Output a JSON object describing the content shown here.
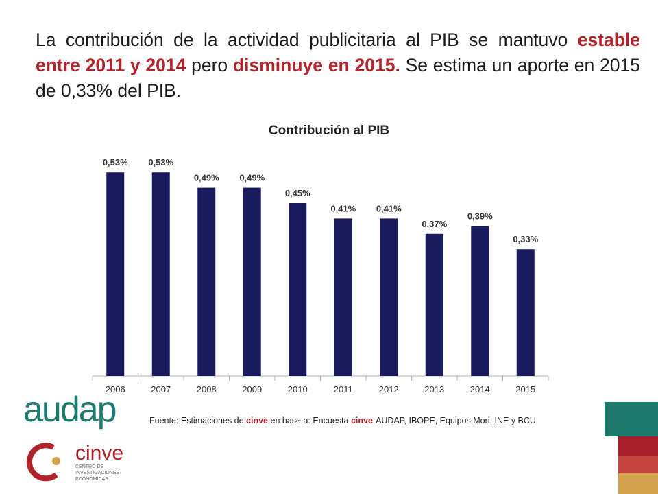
{
  "headline": {
    "part1": "La contribución de la actividad publicitaria al PIB se mantuvo ",
    "highlight1": "estable entre 2011 y 2014",
    "part2": " pero ",
    "highlight2": "disminuye en 2015.",
    "part3": " Se estima un aporte en 2015 de 0,33% del PIB."
  },
  "source": {
    "prefix": "Fuente: Estimaciones de ",
    "brand1": "cinve",
    "mid": " en base a: Encuesta ",
    "brand2": "cinve",
    "suffix": "-AUDAP,  IBOPE, Equipos Mori, INE y BCU"
  },
  "logos": {
    "audap": "audap",
    "cinve": "cinve",
    "cinve_sub": [
      "CENTRO DE",
      "INVESTIGACIONES",
      "ECONÓMICAS"
    ]
  },
  "colors": {
    "bar": "#1a1a5e",
    "highlight": "#b0232a",
    "teal": "#1e7a6c",
    "red1": "#a71f2b",
    "red2": "#c24540",
    "gold": "#d4a24c"
  },
  "chart_data": {
    "type": "bar",
    "title": "Contribución al PIB",
    "categories": [
      "2006",
      "2007",
      "2008",
      "2009",
      "2010",
      "2011",
      "2012",
      "2013",
      "2014",
      "2015"
    ],
    "values": [
      0.53,
      0.53,
      0.49,
      0.49,
      0.45,
      0.41,
      0.41,
      0.37,
      0.39,
      0.33
    ],
    "value_labels": [
      "0,53%",
      "0,53%",
      "0,49%",
      "0,49%",
      "0,45%",
      "0,41%",
      "0,41%",
      "0,37%",
      "0,39%",
      "0,33%"
    ],
    "xlabel": "",
    "ylabel": "",
    "ylim": [
      0,
      0.55
    ],
    "grid": false,
    "legend": "none"
  }
}
